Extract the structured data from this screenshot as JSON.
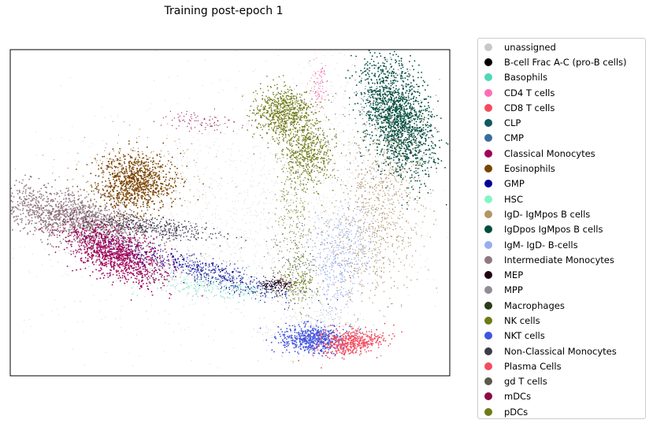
{
  "chart_data": {
    "type": "scatter",
    "title": "Training post-epoch 1",
    "xlabel": "",
    "ylabel": "",
    "ticks": false,
    "grid": false,
    "legend_position": "right-outside",
    "series": [
      {
        "name": "unassigned",
        "color": "#c8c8c8"
      },
      {
        "name": "B-cell Frac A-C (pro-B cells)",
        "color": "#000000"
      },
      {
        "name": "Basophils",
        "color": "#4fd8b8"
      },
      {
        "name": "CD4 T cells",
        "color": "#ff6eb4"
      },
      {
        "name": "CD8 T cells",
        "color": "#f44b5e"
      },
      {
        "name": "CLP",
        "color": "#12585f"
      },
      {
        "name": "CMP",
        "color": "#3a6c9a"
      },
      {
        "name": "Classical Monocytes",
        "color": "#9e0059"
      },
      {
        "name": "Eosinophils",
        "color": "#7a4300"
      },
      {
        "name": "GMP",
        "color": "#000099"
      },
      {
        "name": "HSC",
        "color": "#84f5c5"
      },
      {
        "name": "IgD- IgMpos B cells",
        "color": "#b39468"
      },
      {
        "name": "IgDpos IgMpos B cells",
        "color": "#004d3f"
      },
      {
        "name": "IgM- IgD- B-cells",
        "color": "#98aef0"
      },
      {
        "name": "Intermediate Monocytes",
        "color": "#917880"
      },
      {
        "name": "MEP",
        "color": "#220012"
      },
      {
        "name": "MPP",
        "color": "#8e8e94"
      },
      {
        "name": "Macrophages",
        "color": "#2a3d16"
      },
      {
        "name": "NK cells",
        "color": "#6f7a16"
      },
      {
        "name": "NKT cells",
        "color": "#4054e0"
      },
      {
        "name": "Non-Classical Monocytes",
        "color": "#3e3a4c"
      },
      {
        "name": "Plasma Cells",
        "color": "#f44b5e"
      },
      {
        "name": "gd T cells",
        "color": "#5a5a4c"
      },
      {
        "name": "mDCs",
        "color": "#8a0a46"
      },
      {
        "name": "pDCs",
        "color": "#6f7a16"
      }
    ]
  }
}
